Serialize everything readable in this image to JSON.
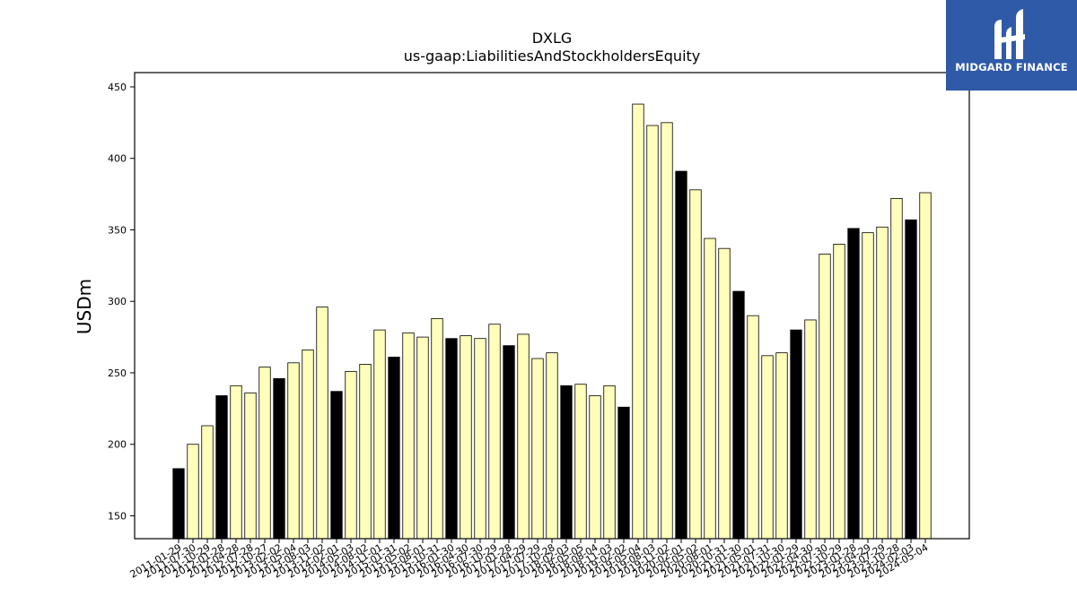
{
  "chart_data": {
    "type": "bar",
    "title": "DXLG",
    "subtitle": "us-gaap:LiabilitiesAndStockholdersEquity",
    "xlabel": "",
    "ylabel": "USDm",
    "ylim": [
      134,
      460
    ],
    "yticks": [
      150,
      200,
      250,
      300,
      350,
      400,
      450
    ],
    "grid": false,
    "colors": {
      "annual": "#000000",
      "quarterly": "#ffffbb",
      "edge": "#000000"
    },
    "categories": [
      "2011-01-29",
      "2011-07-30",
      "2011-10-29",
      "2012-01-28",
      "2012-04-28",
      "2012-07-28",
      "2012-10-27",
      "2013-02-02",
      "2013-05-04",
      "2013-08-03",
      "2013-11-02",
      "2014-02-01",
      "2014-05-03",
      "2014-08-02",
      "2014-11-01",
      "2015-01-31",
      "2015-05-02",
      "2015-08-01",
      "2015-10-31",
      "2016-01-30",
      "2016-04-30",
      "2016-07-30",
      "2016-10-29",
      "2017-01-28",
      "2017-04-29",
      "2017-07-29",
      "2017-10-28",
      "2018-02-03",
      "2018-05-05",
      "2018-08-04",
      "2018-11-03",
      "2019-02-02",
      "2019-05-04",
      "2019-08-03",
      "2019-11-02",
      "2020-02-01",
      "2020-05-02",
      "2020-08-01",
      "2020-10-31",
      "2021-01-30",
      "2021-05-01",
      "2021-07-31",
      "2021-10-30",
      "2022-01-29",
      "2022-04-30",
      "2022-07-30",
      "2022-10-29",
      "2023-01-28",
      "2023-04-29",
      "2023-07-29",
      "2023-10-28",
      "2024-02-03",
      "2024-05-04"
    ],
    "series": [
      {
        "values": [
          183,
          200,
          213,
          234,
          241,
          236,
          254,
          246,
          257,
          266,
          296,
          237,
          251,
          256,
          280,
          261,
          278,
          275,
          288,
          274,
          276,
          274,
          284,
          269,
          277,
          260,
          264,
          241,
          242,
          234,
          241,
          226,
          438,
          423,
          425,
          391,
          378,
          344,
          337,
          307,
          290,
          262,
          264,
          280,
          287,
          333,
          340,
          351,
          348,
          352,
          372,
          357,
          376
        ],
        "annual": [
          true,
          false,
          false,
          true,
          false,
          false,
          false,
          true,
          false,
          false,
          false,
          true,
          false,
          false,
          false,
          true,
          false,
          false,
          false,
          true,
          false,
          false,
          false,
          true,
          false,
          false,
          false,
          true,
          false,
          false,
          false,
          true,
          false,
          false,
          false,
          true,
          false,
          false,
          false,
          true,
          false,
          false,
          false,
          true,
          false,
          false,
          false,
          true,
          false,
          false,
          false,
          true,
          false
        ]
      }
    ]
  },
  "logo": {
    "text": "MIDGARD FINANCE",
    "bg_color": "#2f5aa8",
    "icon": "midgard-logo-icon"
  }
}
